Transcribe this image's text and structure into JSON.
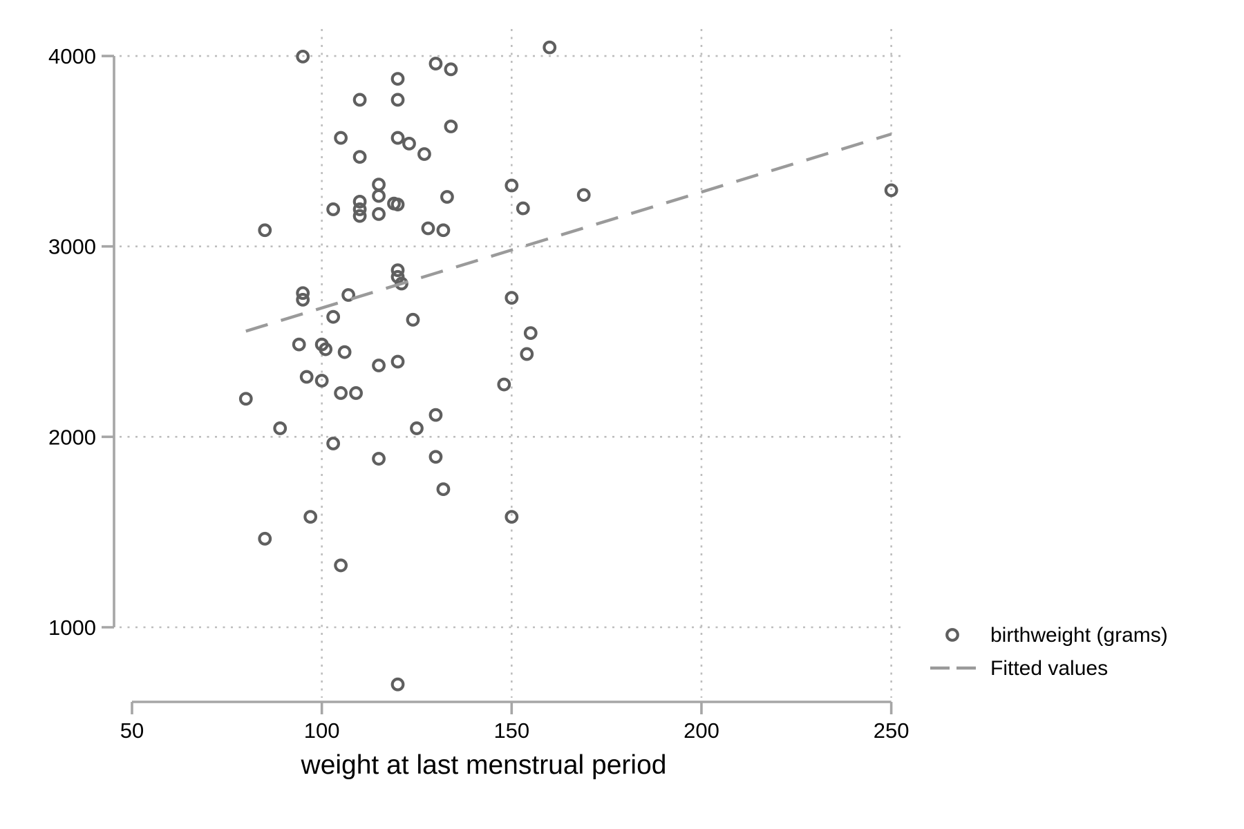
{
  "chart_data": {
    "type": "scatter",
    "title": "",
    "xlabel": "weight at last menstrual period",
    "ylabel": "",
    "x_axis": {
      "min": 50,
      "max": 250,
      "ticks": [
        50,
        100,
        150,
        200,
        250
      ],
      "gridlines": [
        100,
        150,
        200,
        250
      ]
    },
    "y_axis": {
      "min": 1000,
      "max": 4000,
      "ticks": [
        1000,
        2000,
        3000,
        4000
      ],
      "gridlines": [
        1000,
        2000,
        3000,
        4000
      ]
    },
    "grid": "dotted",
    "legend_position": "bottom-right",
    "series": [
      {
        "name": "birthweight (grams)",
        "type": "scatter",
        "marker": "hollow-circle",
        "points": [
          [
            95,
            3997
          ],
          [
            160,
            4045
          ],
          [
            130,
            3960
          ],
          [
            134,
            3930
          ],
          [
            120,
            3880
          ],
          [
            110,
            3770
          ],
          [
            120,
            3770
          ],
          [
            134,
            3630
          ],
          [
            105,
            3570
          ],
          [
            120,
            3570
          ],
          [
            123,
            3540
          ],
          [
            127,
            3485
          ],
          [
            110,
            3470
          ],
          [
            115,
            3325
          ],
          [
            115,
            3265
          ],
          [
            110,
            3235
          ],
          [
            110,
            3195
          ],
          [
            110,
            3160
          ],
          [
            103,
            3195
          ],
          [
            115,
            3170
          ],
          [
            119,
            3225
          ],
          [
            120,
            3220
          ],
          [
            133,
            3260
          ],
          [
            128,
            3095
          ],
          [
            132,
            3085
          ],
          [
            85,
            3085
          ],
          [
            150,
            3320
          ],
          [
            153,
            3200
          ],
          [
            169,
            3270
          ],
          [
            250,
            3295
          ],
          [
            120,
            2875
          ],
          [
            120,
            2840
          ],
          [
            121,
            2805
          ],
          [
            95,
            2755
          ],
          [
            95,
            2720
          ],
          [
            107,
            2745
          ],
          [
            103,
            2630
          ],
          [
            124,
            2615
          ],
          [
            94,
            2485
          ],
          [
            100,
            2485
          ],
          [
            101,
            2460
          ],
          [
            106,
            2445
          ],
          [
            115,
            2375
          ],
          [
            120,
            2395
          ],
          [
            96,
            2315
          ],
          [
            100,
            2295
          ],
          [
            105,
            2230
          ],
          [
            109,
            2230
          ],
          [
            80,
            2200
          ],
          [
            89,
            2045
          ],
          [
            125,
            2045
          ],
          [
            130,
            2115
          ],
          [
            150,
            2730
          ],
          [
            155,
            2545
          ],
          [
            154,
            2435
          ],
          [
            148,
            2275
          ],
          [
            103,
            1965
          ],
          [
            115,
            1885
          ],
          [
            130,
            1895
          ],
          [
            132,
            1725
          ],
          [
            97,
            1580
          ],
          [
            85,
            1465
          ],
          [
            105,
            1325
          ],
          [
            150,
            1580
          ],
          [
            120,
            700
          ]
        ]
      },
      {
        "name": "Fitted values",
        "type": "line",
        "style": "dashed",
        "endpoints": [
          [
            80,
            2555
          ],
          [
            250,
            3590
          ]
        ]
      }
    ],
    "colors": {
      "marker_stroke": "#5f5f5f",
      "fitted_line": "#9a9a9a",
      "axis_line": "#a6a6a6",
      "gridline": "#bdbdbd",
      "text": "#000000",
      "background": "#ffffff"
    }
  }
}
